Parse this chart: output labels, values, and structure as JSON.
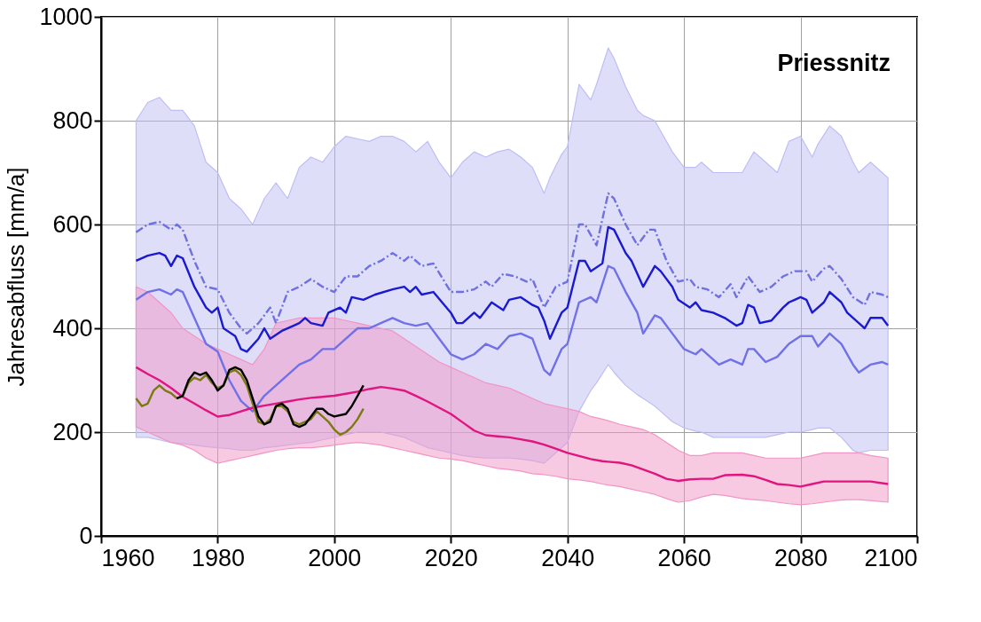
{
  "chart_data": {
    "type": "line",
    "ylabel": "Jahresabfluss [mm/a]",
    "annotations": [
      "Priessnitz"
    ],
    "xlim": [
      1960,
      2100
    ],
    "xticks": [
      1960,
      1980,
      2000,
      2020,
      2040,
      2060,
      2080,
      2100
    ],
    "ylim": [
      0,
      1000
    ],
    "yticks": [
      0,
      200,
      400,
      600,
      800,
      {
        "value": 1000,
        "label": "1000"
      }
    ],
    "grid": true,
    "series": [
      {
        "color": "#7070e8",
        "x": [
          1966,
          1968,
          1970,
          1972,
          1973,
          1974,
          1976,
          1978,
          1980,
          1982,
          1984,
          1986,
          1988,
          1990,
          1992,
          1994,
          1996,
          1998,
          2000,
          2002,
          2004,
          2006,
          2008,
          2010,
          2012,
          2014,
          2016,
          2018,
          2020,
          2022,
          2024,
          2026,
          2028,
          2030,
          2032,
          2034,
          2036,
          2037,
          2039,
          2040,
          2042,
          2044,
          2045,
          2047,
          2048,
          2050,
          2052,
          2053,
          2055,
          2056,
          2058,
          2060,
          2062,
          2063,
          2065,
          2066,
          2068,
          2070,
          2071,
          2072,
          2074,
          2076,
          2078,
          2080,
          2082,
          2083,
          2085,
          2087,
          2089,
          2090,
          2092,
          2094,
          2095
        ],
        "values": [
          455,
          470,
          475,
          465,
          475,
          470,
          420,
          370,
          355,
          300,
          260,
          240,
          270,
          290,
          310,
          330,
          340,
          360,
          360,
          380,
          400,
          400,
          410,
          420,
          410,
          405,
          410,
          380,
          350,
          340,
          350,
          370,
          360,
          385,
          390,
          380,
          320,
          310,
          360,
          370,
          450,
          460,
          450,
          520,
          515,
          470,
          430,
          390,
          425,
          420,
          390,
          360,
          350,
          360,
          340,
          330,
          340,
          330,
          360,
          360,
          335,
          345,
          370,
          385,
          385,
          365,
          390,
          370,
          330,
          315,
          330,
          335,
          330
        ],
        "upper": [
          800,
          835,
          845,
          820,
          820,
          820,
          790,
          720,
          700,
          650,
          630,
          600,
          650,
          680,
          650,
          710,
          730,
          720,
          750,
          770,
          765,
          760,
          770,
          770,
          760,
          740,
          760,
          720,
          690,
          720,
          740,
          730,
          740,
          745,
          730,
          710,
          660,
          690,
          735,
          750,
          870,
          840,
          870,
          940,
          920,
          865,
          820,
          810,
          800,
          780,
          740,
          710,
          710,
          720,
          700,
          700,
          700,
          700,
          720,
          740,
          720,
          700,
          760,
          770,
          730,
          755,
          790,
          770,
          720,
          700,
          720,
          700,
          690
        ],
        "lower": [
          190,
          190,
          185,
          180,
          179,
          178,
          175,
          172,
          170,
          168,
          165,
          165,
          170,
          172,
          175,
          178,
          180,
          185,
          190,
          195,
          200,
          200,
          200,
          195,
          190,
          180,
          170,
          165,
          160,
          155,
          152,
          150,
          150,
          150,
          148,
          145,
          140,
          150,
          170,
          180,
          240,
          280,
          295,
          330,
          315,
          290,
          272,
          265,
          250,
          240,
          220,
          208,
          202,
          200,
          190,
          190,
          190,
          190,
          190,
          190,
          190,
          195,
          200,
          200,
          205,
          208,
          208,
          190,
          165,
          160,
          165,
          165,
          165
        ]
      },
      {
        "color": "#e0157f",
        "x": [
          1966,
          1968,
          1970,
          1972,
          1974,
          1976,
          1978,
          1980,
          1982,
          1984,
          1986,
          1988,
          1990,
          1992,
          1994,
          1996,
          1998,
          2000,
          2002,
          2004,
          2006,
          2008,
          2010,
          2012,
          2014,
          2016,
          2018,
          2020,
          2022,
          2024,
          2026,
          2028,
          2030,
          2032,
          2034,
          2036,
          2038,
          2040,
          2042,
          2044,
          2046,
          2047,
          2049,
          2051,
          2053,
          2055,
          2057,
          2059,
          2061,
          2063,
          2065,
          2067,
          2070,
          2072,
          2074,
          2076,
          2078,
          2080,
          2082,
          2084,
          2086,
          2088,
          2090,
          2092,
          2095
        ],
        "values": [
          325,
          312,
          300,
          285,
          268,
          255,
          242,
          230,
          233,
          240,
          247,
          251,
          255,
          259,
          263,
          266,
          268,
          270,
          274,
          278,
          283,
          287,
          284,
          280,
          270,
          259,
          247,
          235,
          219,
          203,
          194,
          192,
          190,
          186,
          182,
          176,
          168,
          160,
          154,
          148,
          144,
          143,
          141,
          136,
          128,
          120,
          110,
          106,
          109,
          110,
          110,
          117,
          118,
          115,
          108,
          100,
          98,
          95,
          100,
          105,
          105,
          105,
          105,
          105,
          100
        ],
        "upper": [
          480,
          470,
          450,
          430,
          400,
          385,
          370,
          360,
          350,
          340,
          330,
          360,
          410,
          415,
          420,
          420,
          420,
          420,
          415,
          410,
          405,
          400,
          395,
          380,
          365,
          350,
          335,
          325,
          315,
          305,
          295,
          290,
          285,
          275,
          265,
          255,
          250,
          245,
          240,
          230,
          225,
          222,
          215,
          210,
          205,
          195,
          180,
          165,
          155,
          155,
          160,
          160,
          160,
          155,
          150,
          150,
          150,
          150,
          155,
          160,
          160,
          160,
          160,
          155,
          150
        ],
        "lower": [
          210,
          200,
          190,
          180,
          175,
          165,
          150,
          140,
          145,
          150,
          155,
          160,
          165,
          168,
          170,
          170,
          172,
          175,
          178,
          180,
          178,
          175,
          170,
          165,
          160,
          155,
          150,
          148,
          145,
          140,
          135,
          130,
          128,
          125,
          120,
          118,
          115,
          110,
          108,
          105,
          100,
          98,
          95,
          90,
          85,
          80,
          72,
          65,
          68,
          75,
          80,
          78,
          72,
          70,
          68,
          65,
          62,
          60,
          62,
          65,
          68,
          70,
          70,
          68,
          65
        ]
      },
      {
        "color": "#7070e0",
        "line_style": "dashed",
        "x": [
          1966,
          1968,
          1970,
          1972,
          1973,
          1974,
          1976,
          1978,
          1980,
          1982,
          1984,
          1985,
          1987,
          1989,
          1990,
          1992,
          1994,
          1996,
          1998,
          2000,
          2002,
          2004,
          2006,
          2008,
          2010,
          2012,
          2013,
          2015,
          2017,
          2020,
          2022,
          2024,
          2026,
          2027,
          2029,
          2031,
          2033,
          2034,
          2036,
          2038,
          2040,
          2042,
          2043,
          2045,
          2047,
          2048,
          2050,
          2052,
          2054,
          2055,
          2057,
          2059,
          2061,
          2062,
          2064,
          2066,
          2068,
          2069,
          2071,
          2073,
          2075,
          2077,
          2079,
          2081,
          2082,
          2084,
          2085,
          2087,
          2089,
          2091,
          2092,
          2094,
          2095
        ],
        "values": [
          585,
          600,
          605,
          590,
          600,
          590,
          530,
          480,
          475,
          430,
          400,
          390,
          410,
          440,
          410,
          470,
          480,
          495,
          480,
          470,
          500,
          500,
          520,
          530,
          545,
          530,
          540,
          520,
          525,
          470,
          470,
          475,
          490,
          480,
          505,
          500,
          490,
          495,
          440,
          480,
          490,
          600,
          600,
          560,
          660,
          650,
          600,
          560,
          590,
          590,
          530,
          490,
          495,
          480,
          475,
          460,
          485,
          460,
          500,
          470,
          480,
          500,
          510,
          510,
          490,
          515,
          520,
          495,
          460,
          445,
          470,
          465,
          460
        ]
      },
      {
        "color": "#1a1ad0",
        "x": [
          1966,
          1968,
          1970,
          1971,
          1972,
          1973,
          1974,
          1976,
          1978,
          1979,
          1980,
          1981,
          1983,
          1984,
          1985,
          1987,
          1988,
          1989,
          1991,
          1993,
          1994,
          1995,
          1996,
          1998,
          1999,
          2001,
          2002,
          2003,
          2005,
          2007,
          2010,
          2012,
          2013,
          2014,
          2015,
          2017,
          2020,
          2021,
          2022,
          2024,
          2025,
          2027,
          2029,
          2030,
          2032,
          2034,
          2035,
          2036,
          2037,
          2039,
          2040,
          2042,
          2043,
          2044,
          2046,
          2047,
          2048,
          2050,
          2051,
          2053,
          2055,
          2056,
          2058,
          2059,
          2061,
          2062,
          2063,
          2065,
          2066,
          2067,
          2069,
          2070,
          2071,
          2072,
          2073,
          2075,
          2077,
          2078,
          2079,
          2080,
          2081,
          2082,
          2084,
          2085,
          2087,
          2088,
          2090,
          2091,
          2092,
          2094,
          2095
        ],
        "values": [
          530,
          540,
          545,
          540,
          520,
          540,
          535,
          480,
          440,
          430,
          440,
          400,
          385,
          360,
          355,
          380,
          400,
          380,
          395,
          405,
          410,
          420,
          410,
          405,
          430,
          440,
          430,
          460,
          455,
          465,
          475,
          480,
          470,
          480,
          465,
          470,
          430,
          410,
          410,
          430,
          420,
          450,
          435,
          455,
          460,
          445,
          440,
          415,
          380,
          430,
          440,
          530,
          530,
          510,
          525,
          595,
          590,
          545,
          530,
          480,
          520,
          510,
          480,
          455,
          440,
          450,
          435,
          430,
          425,
          420,
          405,
          410,
          445,
          440,
          410,
          415,
          440,
          450,
          455,
          460,
          455,
          430,
          450,
          470,
          450,
          430,
          410,
          400,
          420,
          420,
          405
        ]
      },
      {
        "color": "#7a7a10",
        "x": [
          1966,
          1967,
          1968,
          1969,
          1970,
          1971,
          1972,
          1973,
          1974,
          1975,
          1976,
          1977,
          1978,
          1979,
          1980,
          1981,
          1982,
          1983,
          1984,
          1985,
          1987,
          1988,
          1989,
          1990,
          1991,
          1992,
          1993,
          1994,
          1995,
          1996,
          1997,
          1998,
          1999,
          2000,
          2001,
          2002,
          2003,
          2004,
          2005
        ],
        "values": [
          265,
          250,
          255,
          280,
          290,
          280,
          275,
          265,
          270,
          295,
          305,
          300,
          310,
          295,
          285,
          290,
          315,
          320,
          310,
          290,
          220,
          215,
          225,
          250,
          250,
          240,
          220,
          215,
          220,
          225,
          240,
          230,
          220,
          205,
          195,
          200,
          210,
          225,
          245
        ]
      },
      {
        "color": "#000000",
        "x": [
          1973,
          1974,
          1975,
          1976,
          1977,
          1978,
          1979,
          1980,
          1981,
          1982,
          1983,
          1984,
          1985,
          1987,
          1988,
          1989,
          1990,
          1991,
          1992,
          1993,
          1994,
          1995,
          1996,
          1997,
          1998,
          1999,
          2000,
          2002,
          2003,
          2004,
          2005
        ],
        "values": [
          265,
          270,
          300,
          315,
          310,
          315,
          300,
          280,
          290,
          320,
          325,
          320,
          300,
          230,
          215,
          220,
          250,
          255,
          245,
          215,
          210,
          215,
          230,
          245,
          245,
          235,
          230,
          235,
          250,
          270,
          290
        ]
      }
    ]
  }
}
